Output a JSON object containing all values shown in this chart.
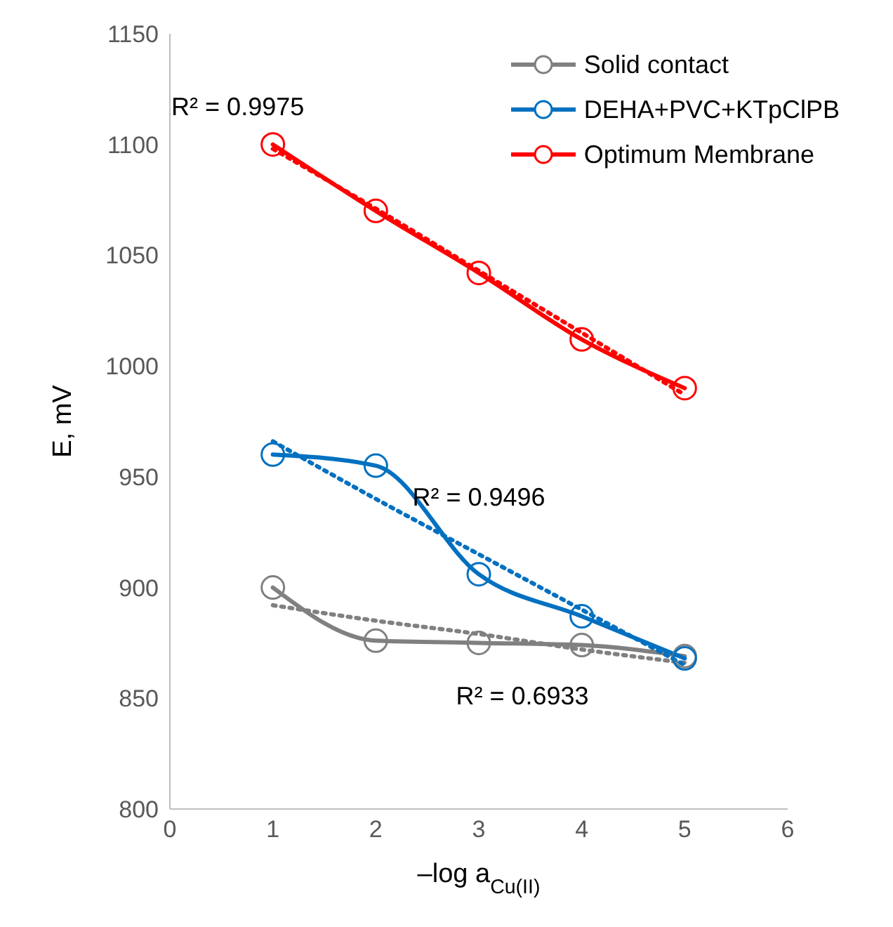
{
  "chart_data": {
    "type": "line",
    "xlabel": "–log a$_{Cu(II)}$",
    "ylabel": "E, mV",
    "xlim": [
      0,
      6
    ],
    "xticks": [
      0,
      1,
      2,
      3,
      4,
      5,
      6
    ],
    "ylim": [
      800,
      1150
    ],
    "yticks": [
      800,
      850,
      900,
      950,
      1000,
      1050,
      1100,
      1150
    ],
    "grid": false,
    "legend": "top right",
    "marker": "circle",
    "line_style": "solid",
    "x": [
      1,
      2,
      3,
      4,
      5
    ],
    "series": [
      {
        "name": "Solid contact",
        "color": "#808080",
        "values": [
          900,
          876,
          875,
          874,
          869
        ]
      },
      {
        "name": "DEHA+PVC+KTpClPB",
        "color": "#0070c0",
        "values": [
          960,
          955,
          906,
          887,
          868
        ]
      },
      {
        "name": "Optimum Membrane",
        "color": "#ff0000",
        "values": [
          1100,
          1070,
          1042,
          1012,
          990
        ]
      },
      {
        "color": "#808080",
        "values": [
          892,
          885,
          879,
          872,
          866
        ],
        "marker": "none",
        "line_style": "dotted"
      },
      {
        "color": "#0070c0",
        "values": [
          966,
          940,
          915,
          890,
          865
        ],
        "marker": "none",
        "line_style": "dotted"
      },
      {
        "color": "#ff0000",
        "values": [
          1098,
          1071,
          1043,
          1015,
          987
        ],
        "marker": "none",
        "line_style": "dotted"
      }
    ],
    "annotations": [
      "R² = 0.9975",
      "R² = 0.9496",
      "R² = 0.6933"
    ]
  }
}
